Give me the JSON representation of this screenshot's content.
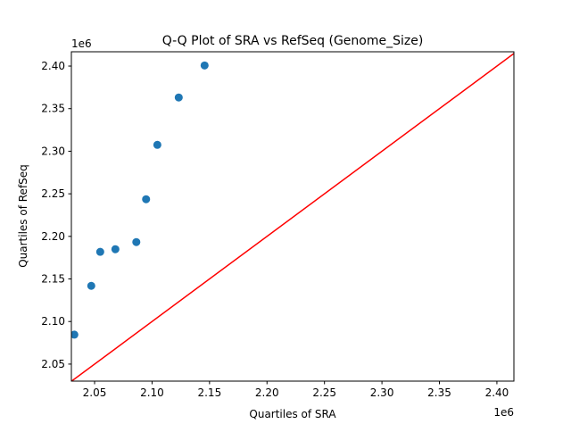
{
  "chart_data": {
    "type": "scatter",
    "title": "Q-Q Plot of SRA vs RefSeq (Genome_Size)",
    "xlabel": "Quartiles of SRA",
    "ylabel": "Quartiles of RefSeq",
    "x_offset_label": "1e6",
    "y_offset_label": "1e6",
    "xlim": [
      2.0298,
      2.4148
    ],
    "ylim": [
      2.03,
      2.4168
    ],
    "xticks": [
      "2.05",
      "2.10",
      "2.15",
      "2.20",
      "2.25",
      "2.30",
      "2.35",
      "2.40"
    ],
    "yticks": [
      "2.05",
      "2.10",
      "2.15",
      "2.20",
      "2.25",
      "2.30",
      "2.35",
      "2.40"
    ],
    "grid": false,
    "series": [
      {
        "x": [
          2.0324,
          2.0471,
          2.0549,
          2.0681,
          2.0863,
          2.0948,
          2.1046,
          2.1232,
          2.1457
        ],
        "y": [
          2.0846,
          2.1419,
          2.1818,
          2.1849,
          2.1933,
          2.2436,
          2.3075,
          2.3631,
          2.4007
        ],
        "color": "#1f77b4"
      }
    ],
    "reference_line": {
      "type": "y=x",
      "color": "#ff0000"
    }
  }
}
